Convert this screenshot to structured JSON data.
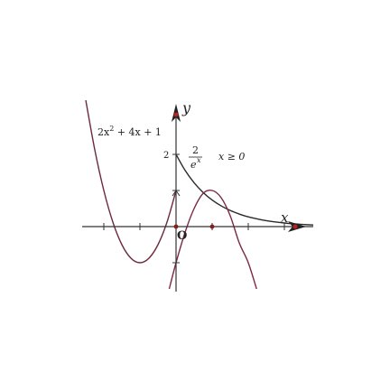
{
  "chart_data": {
    "type": "line",
    "xlabel": "x",
    "ylabel": "y",
    "origin_label": "O",
    "xlim": [
      -2.6,
      3.8
    ],
    "ylim": [
      -1.8,
      3.2
    ],
    "x_ticks": [
      -2,
      -1,
      0,
      1,
      2,
      3
    ],
    "y_ticks": [
      -1,
      1,
      2
    ],
    "y_tick_labels": [
      {
        "value": 2,
        "text": "2"
      }
    ],
    "grid": false,
    "series": [
      {
        "formula": "2x² + 4x + 1",
        "domain": [
          -2.5,
          0
        ],
        "x": [
          -2.5,
          -2.25,
          -2.0,
          -1.75,
          -1.5,
          -1.25,
          -1.0,
          -0.75,
          -0.5,
          -0.25,
          0
        ],
        "y": [
          3.5,
          2.125,
          1.0,
          0.125,
          -0.5,
          -0.875,
          -1.0,
          -0.875,
          -0.5,
          0.125,
          1.0
        ],
        "color": "#6b2a3a"
      },
      {
        "formula": "2/eˣ, x ≥ 0",
        "formula_parts": {
          "numerator": "2",
          "denominator": "e",
          "exponent": "x",
          "condition": "x ≥ 0"
        },
        "domain": [
          0,
          3.8
        ],
        "x": [
          0,
          0.25,
          0.5,
          0.75,
          1.0,
          1.25,
          1.5,
          1.75,
          2.0,
          2.5,
          3.0,
          3.5,
          3.8
        ],
        "y": [
          2.0,
          1.558,
          1.213,
          0.945,
          0.736,
          0.573,
          0.446,
          0.348,
          0.271,
          0.164,
          0.1,
          0.06,
          0.045
        ],
        "color": "#2a2a2a"
      },
      {
        "formula": "",
        "domain": [
          -0.2,
          2.25
        ],
        "x": [
          -0.2,
          0,
          0.25,
          0.5,
          0.75,
          1.0,
          1.25,
          1.5,
          1.75,
          2.0,
          2.25
        ],
        "y": [
          -1.77,
          -1.0,
          -0.16,
          0.5,
          0.92,
          1.0,
          0.8,
          0.3,
          -0.45,
          -1.0,
          -1.79
        ],
        "color": "#7a2a45"
      }
    ],
    "marked_points": [
      {
        "x": 0,
        "y": 0,
        "color": "#8b1a1a"
      },
      {
        "x": 1,
        "y": 0,
        "color": "#8b1a1a"
      },
      {
        "x": 3.3,
        "y": 0,
        "color": "#c02020"
      },
      {
        "x": 0,
        "y": 3.1,
        "color": "#c02020"
      }
    ]
  }
}
